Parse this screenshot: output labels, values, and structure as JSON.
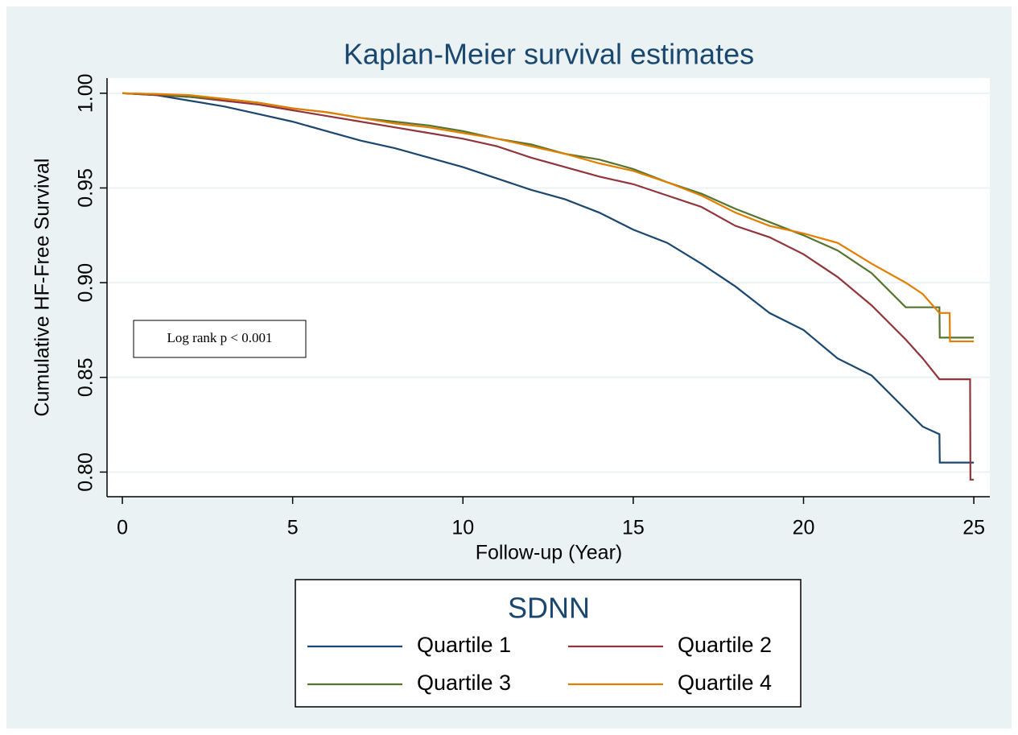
{
  "chart_data": {
    "type": "line",
    "step": false,
    "title": "Kaplan-Meier survival estimates",
    "x_label": "Follow-up (Year)",
    "y_label": "Cumulative HF-Free Survival",
    "annotation": "Log rank p < 0.001",
    "legend_title": "SDNN",
    "legend_position": "bottom",
    "grid": true,
    "xlim": [
      -0.45,
      25.47
    ],
    "ylim": [
      0.787,
      1.008
    ],
    "xticks": [
      0,
      5,
      10,
      15,
      20,
      25
    ],
    "yticks": [
      {
        "value": 0.8,
        "label": "0.80"
      },
      {
        "value": 0.85,
        "label": "0.85"
      },
      {
        "value": 0.9,
        "label": "0.90"
      },
      {
        "value": 0.95,
        "label": "0.95"
      },
      {
        "value": 1,
        "label": "1.00"
      }
    ],
    "x": [
      0,
      1,
      2,
      3,
      4,
      5,
      6,
      7,
      8,
      9,
      10,
      11,
      12,
      13,
      14,
      15,
      16,
      17,
      18,
      19,
      20,
      21,
      22,
      23,
      23.5,
      23.99,
      24.0,
      24.29,
      24.3,
      24.89,
      24.9,
      25
    ],
    "series": [
      {
        "name": "Quartile 1",
        "color": "#1a476f",
        "values": [
          1.0,
          0.999,
          0.996,
          0.993,
          0.989,
          0.985,
          0.98,
          0.975,
          0.971,
          0.966,
          0.961,
          0.955,
          0.949,
          0.944,
          0.937,
          0.928,
          0.921,
          0.91,
          0.898,
          0.884,
          0.875,
          0.86,
          0.851,
          0.833,
          0.824,
          0.82,
          0.805,
          0.805,
          0.805,
          0.805,
          0.805,
          0.805
        ]
      },
      {
        "name": "Quartile 2",
        "color": "#90353b",
        "values": [
          1.0,
          0.999,
          0.998,
          0.996,
          0.994,
          0.991,
          0.988,
          0.985,
          0.982,
          0.979,
          0.976,
          0.972,
          0.966,
          0.961,
          0.956,
          0.952,
          0.946,
          0.94,
          0.93,
          0.924,
          0.915,
          0.903,
          0.888,
          0.87,
          0.86,
          0.849,
          0.849,
          0.849,
          0.849,
          0.849,
          0.796,
          0.796
        ]
      },
      {
        "name": "Quartile 3",
        "color": "#55752f",
        "values": [
          1.0,
          0.9995,
          0.998,
          0.997,
          0.995,
          0.992,
          0.99,
          0.987,
          0.985,
          0.983,
          0.98,
          0.976,
          0.973,
          0.968,
          0.965,
          0.96,
          0.953,
          0.947,
          0.939,
          0.932,
          0.925,
          0.917,
          0.905,
          0.887,
          0.887,
          0.887,
          0.871,
          0.871,
          0.871,
          0.871,
          0.871,
          0.871
        ]
      },
      {
        "name": "Quartile 4",
        "color": "#e37e00",
        "values": [
          1.0,
          0.9996,
          0.999,
          0.997,
          0.995,
          0.992,
          0.99,
          0.987,
          0.984,
          0.982,
          0.979,
          0.976,
          0.972,
          0.968,
          0.963,
          0.959,
          0.953,
          0.946,
          0.937,
          0.93,
          0.926,
          0.921,
          0.91,
          0.9,
          0.894,
          0.884,
          0.884,
          0.884,
          0.869,
          0.869,
          0.869,
          0.869
        ]
      }
    ]
  }
}
